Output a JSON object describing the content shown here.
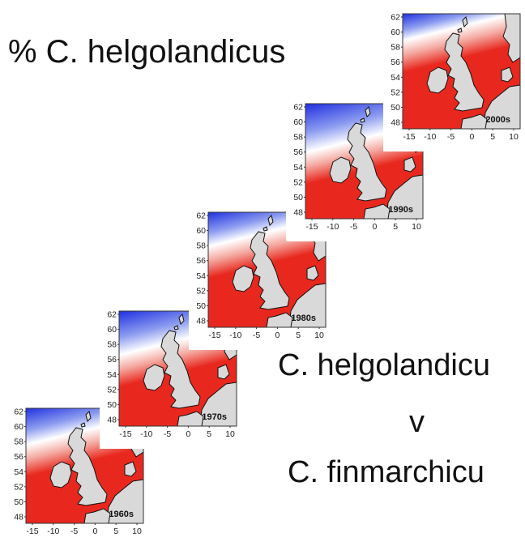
{
  "title": "% C. helgolandicus",
  "caption": {
    "line1": "C. helgolandicu",
    "line2": "v",
    "line3": "C. finmarchicu"
  },
  "maps": [
    {
      "id": "1960s",
      "label": "1960s"
    },
    {
      "id": "1970s",
      "label": "1970s"
    },
    {
      "id": "1980s",
      "label": "1980s"
    },
    {
      "id": "1990s",
      "label": "1990s"
    },
    {
      "id": "2000s",
      "label": "2000s"
    }
  ],
  "axes": {
    "y_ticks": [
      "62",
      "60",
      "58",
      "56",
      "54",
      "52",
      "50",
      "48"
    ],
    "x_ticks": [
      "-15",
      "-10",
      "-5",
      "0",
      "5",
      "10"
    ]
  },
  "colors": {
    "high": "#e8281e",
    "mid": "#ffffff",
    "low": "#2030e0",
    "land": "#d9d9d9"
  }
}
